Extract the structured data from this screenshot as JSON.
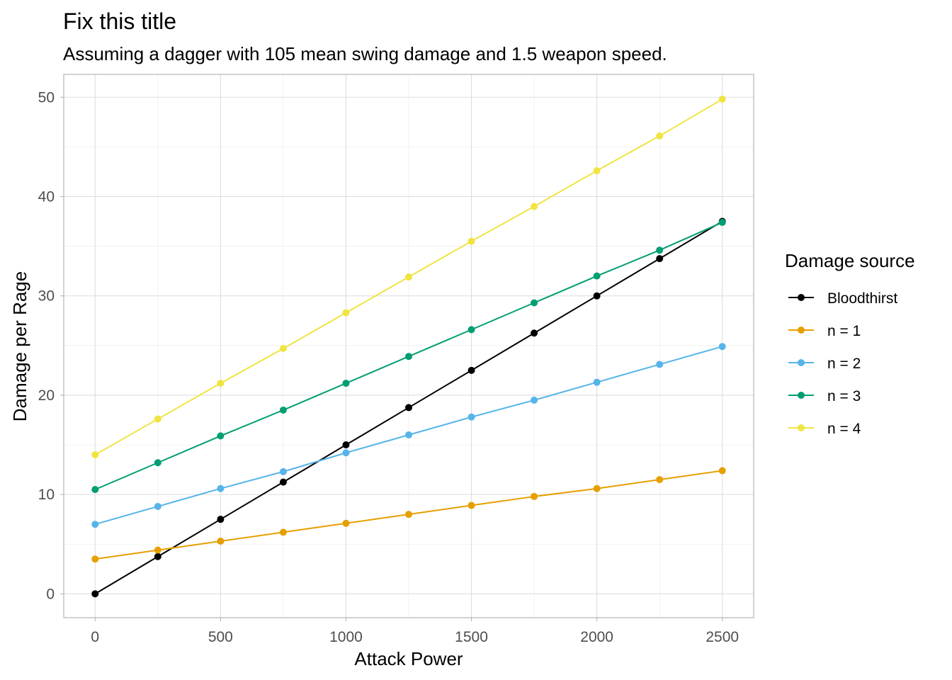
{
  "chart_data": {
    "type": "line",
    "title": "Fix this title",
    "subtitle": "Assuming a dagger with 105 mean swing damage and 1.5 weapon speed.",
    "xlabel": "Attack Power",
    "ylabel": "Damage per Rage",
    "xlim": [
      -125,
      2625
    ],
    "ylim": [
      -2.4,
      52.3
    ],
    "x_ticks": [
      0,
      500,
      1000,
      1500,
      2000,
      2500
    ],
    "y_ticks": [
      0,
      10,
      20,
      30,
      40,
      50
    ],
    "x_tick_labels": [
      "0",
      "500",
      "1000",
      "1500",
      "2000",
      "2500"
    ],
    "y_tick_labels": [
      "0",
      "10",
      "20",
      "30",
      "40",
      "50"
    ],
    "grid": true,
    "legend": {
      "title": "Damage source",
      "placement": "right"
    },
    "x": [
      0,
      250,
      500,
      750,
      1000,
      1250,
      1500,
      1750,
      2000,
      2250,
      2500
    ],
    "series": [
      {
        "name": "Bloodthirst",
        "color": "#000000",
        "values": [
          0,
          3.75,
          7.5,
          11.25,
          15,
          18.75,
          22.5,
          26.25,
          30,
          33.75,
          37.5
        ]
      },
      {
        "name": "n = 1",
        "color": "#E69F00",
        "values": [
          3.5,
          4.4,
          5.3,
          6.2,
          7.1,
          8.0,
          8.9,
          9.8,
          10.6,
          11.5,
          12.4
        ]
      },
      {
        "name": "n = 2",
        "color": "#56B4E9",
        "values": [
          7.0,
          8.8,
          10.6,
          12.3,
          14.2,
          16.0,
          17.8,
          19.5,
          21.3,
          23.1,
          24.9
        ]
      },
      {
        "name": "n = 3",
        "color": "#009E73",
        "values": [
          10.5,
          13.2,
          15.9,
          18.5,
          21.2,
          23.9,
          26.6,
          29.3,
          32.0,
          34.6,
          37.4
        ]
      },
      {
        "name": "n = 4",
        "color": "#F0E442",
        "values": [
          14.0,
          17.6,
          21.2,
          24.7,
          28.3,
          31.9,
          35.5,
          39.0,
          42.6,
          46.1,
          49.8
        ]
      }
    ]
  }
}
